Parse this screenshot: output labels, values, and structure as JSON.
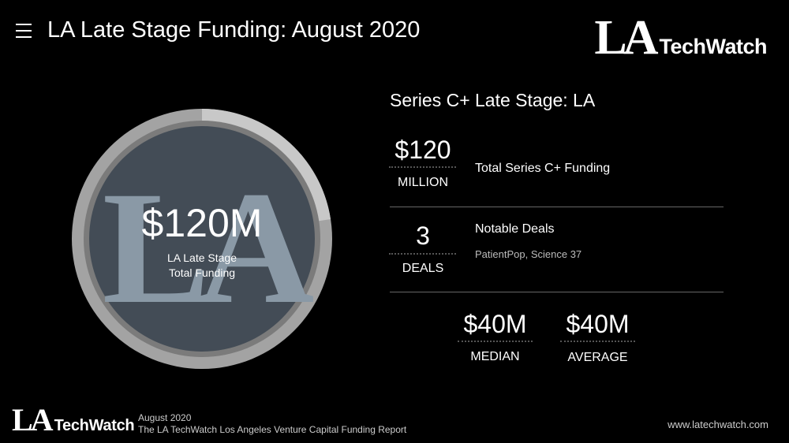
{
  "header": {
    "menu_icon": "hamburger-menu-icon",
    "title": "LA Late Stage Funding: August 2020"
  },
  "brand": {
    "monogram": "LA",
    "wordmark": "TechWatch"
  },
  "gauge": {
    "value": "$120M",
    "label_line1": "LA Late Stage",
    "label_line2": "Total Funding",
    "watermark": "LA",
    "colors": {
      "outer_ring": "#a3a3a3",
      "outer_ring_segment": "#c8c8c8",
      "inner_disc": "#434c56",
      "watermark": "#8a99a6"
    }
  },
  "stats": {
    "section_title": "Series C+ Late Stage: LA",
    "total": {
      "number": "$120",
      "unit": "MILLION",
      "description": "Total Series C+ Funding"
    },
    "deals": {
      "number": "3",
      "unit": "DEALS",
      "description": "Notable Deals",
      "names": "PatientPop, Science 37"
    },
    "median": {
      "number": "$40M",
      "unit": "MEDIAN"
    },
    "average": {
      "number": "$40M",
      "unit": "AVERAGE"
    }
  },
  "footer": {
    "date": "August 2020",
    "report": "The LA TechWatch Los Angeles Venture Capital Funding Report",
    "url": "www.latechwatch.com"
  }
}
